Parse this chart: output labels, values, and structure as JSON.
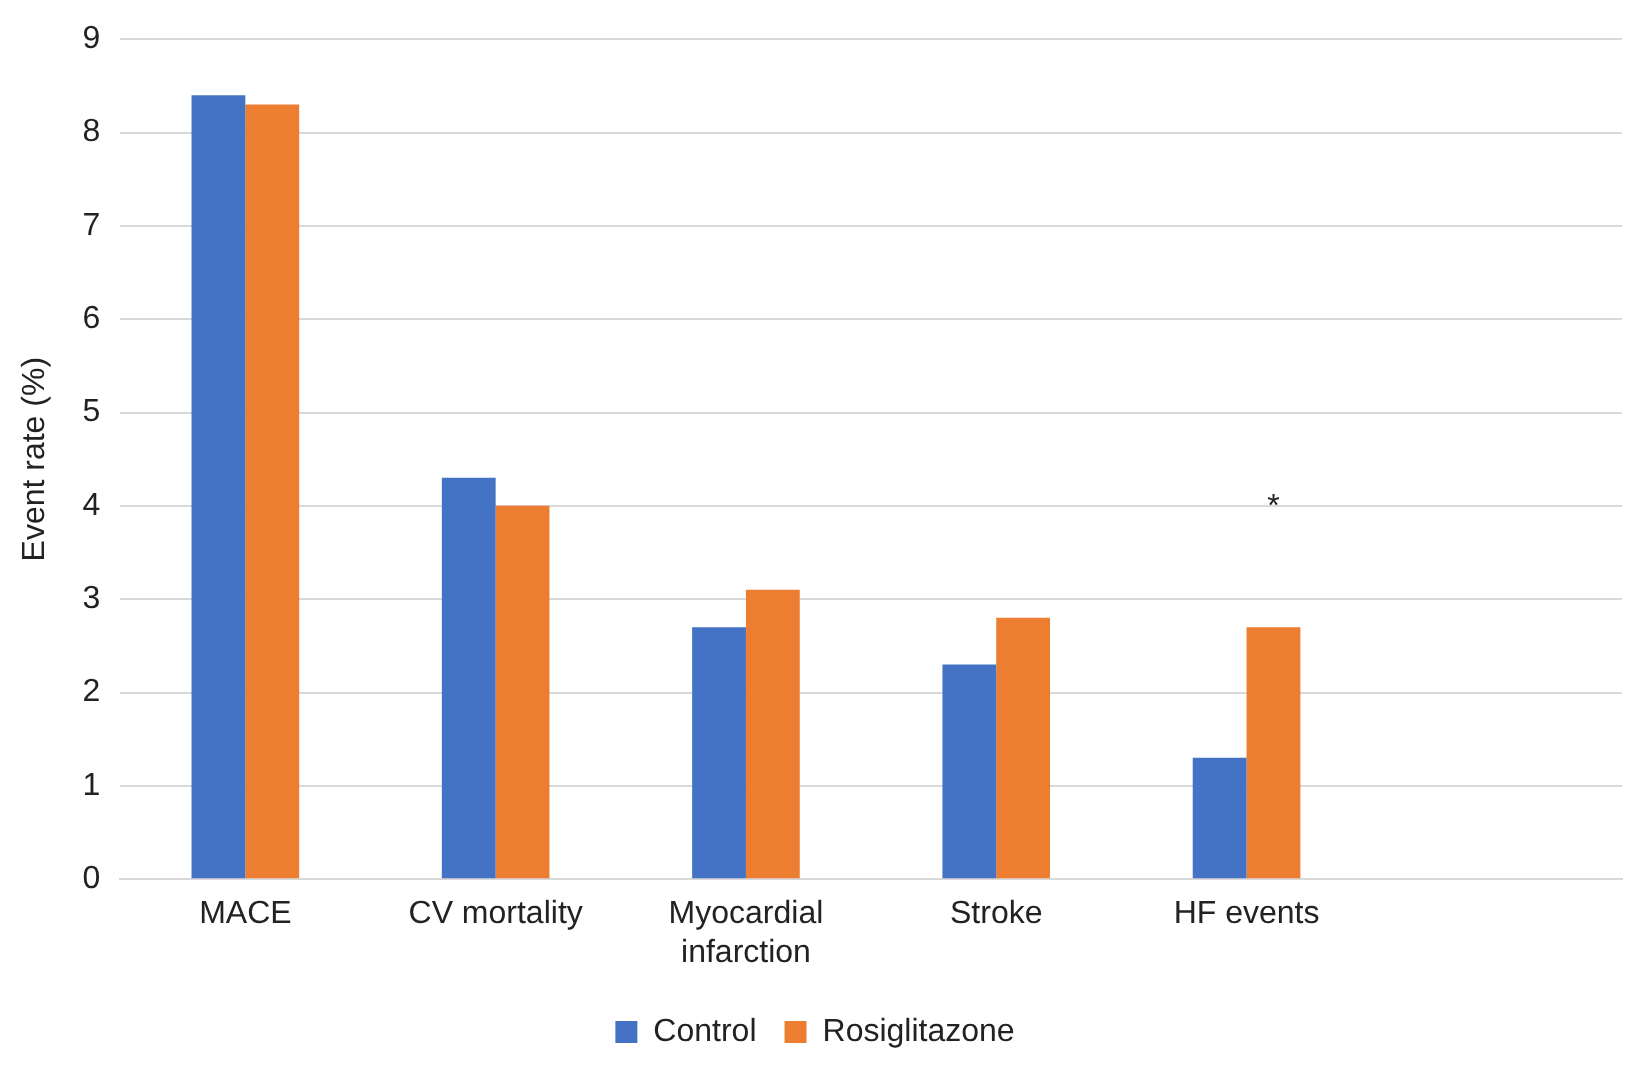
{
  "chart_data": {
    "type": "bar",
    "ylabel": "Event rate (%)",
    "categories": [
      "MACE",
      "CV mortality",
      "Myocardial infarction",
      "Stroke",
      "HF events",
      null
    ],
    "series": [
      {
        "name": "Control",
        "color": "#4472c4",
        "values": [
          8.4,
          4.3,
          2.7,
          2.3,
          1.3,
          null
        ]
      },
      {
        "name": "Rosiglitazone",
        "color": "#ed7d31",
        "values": [
          8.3,
          4.0,
          3.1,
          2.8,
          2.7,
          null
        ]
      }
    ],
    "ylim": [
      0,
      9
    ],
    "yticks": [
      0,
      1,
      2,
      3,
      4,
      5,
      6,
      7,
      8,
      9
    ],
    "grid": "y",
    "legend": "bottom",
    "annotations": [
      "*"
    ]
  }
}
